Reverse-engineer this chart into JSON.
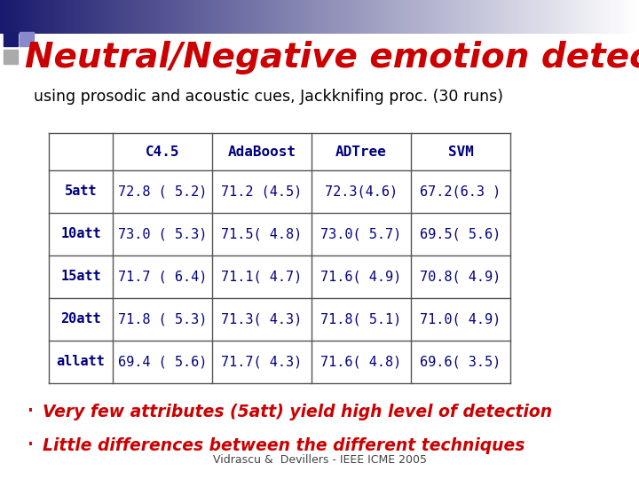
{
  "title": "Neutral/Negative emotion detection",
  "subtitle": "using prosodic and acoustic cues, Jackknifing proc. (30 runs)",
  "title_color": "#cc0000",
  "subtitle_color": "#000000",
  "bg_color": "#ffffff",
  "header_row": [
    "",
    "C4.5",
    "AdaBoost",
    "ADTree",
    "SVM"
  ],
  "rows": [
    [
      "5att",
      "72.8 ( 5.2)",
      "71.2 (4.5)",
      "72.3(4.6)",
      "67.2(6.3 )"
    ],
    [
      "10att",
      "73.0 ( 5.3)",
      "71.5( 4.8)",
      "73.0( 5.7)",
      "69.5( 5.6)"
    ],
    [
      "15att",
      "71.7 ( 6.4)",
      "71.1( 4.7)",
      "71.6( 4.9)",
      "70.8( 4.9)"
    ],
    [
      "20att",
      "71.8 ( 5.3)",
      "71.3( 4.3)",
      "71.8( 5.1)",
      "71.0( 4.9)"
    ],
    [
      "allatt",
      "69.4 ( 5.6)",
      "71.7( 4.3)",
      "71.6( 4.8)",
      "69.6( 3.5)"
    ]
  ],
  "row_label_color": "#000080",
  "cell_text_color": "#000080",
  "header_text_color": "#000080",
  "table_line_color": "#555555",
  "bullet_lines": [
    "Very few attributes (5att) yield high level of detection",
    "Little differences between the different techniques"
  ],
  "bullet_color": "#cc0000",
  "footer": "Vidrascu &  Devillers - IEEE ICME 2005",
  "footer_color": "#444444",
  "bar_color_left": "#1a1a6e",
  "bar_color_right": "#ffffff",
  "square_blue": "#1a1a6e",
  "square_lblue": "#8888cc",
  "square_gray": "#aaaaaa"
}
